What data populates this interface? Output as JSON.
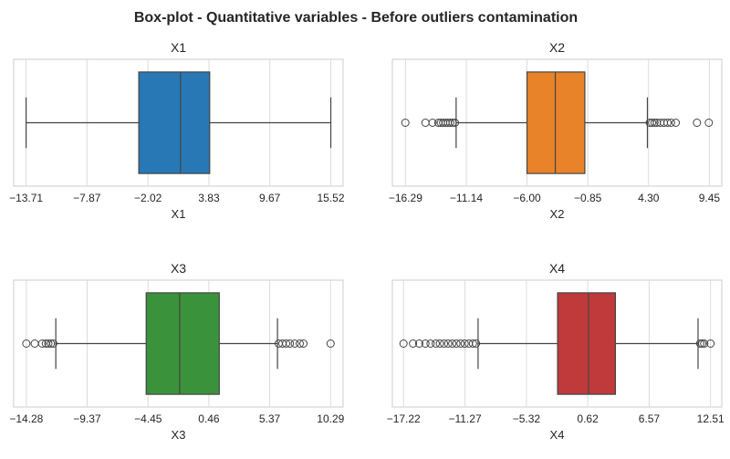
{
  "chart_data": {
    "type": "box",
    "title": "Box-plot - Quantitative variables - Before outliers contamination",
    "panels": [
      {
        "title": "X1",
        "xlabel": "X1",
        "color": "#2878b5",
        "xlim": [
          -14.9,
          16.7
        ],
        "ticks": [
          "-13.71",
          "-7.87",
          "-2.02",
          "3.83",
          "9.67",
          "15.52"
        ],
        "tick_values": [
          -13.71,
          -7.87,
          -2.02,
          3.83,
          9.67,
          15.52
        ],
        "box": {
          "whisker_low": -13.71,
          "q1": -2.9,
          "median": 1.1,
          "q3": 3.9,
          "whisker_high": 15.52
        },
        "outliers": []
      },
      {
        "title": "X2",
        "xlabel": "X2",
        "color": "#e8832a",
        "xlim": [
          -17.4,
          10.5
        ],
        "ticks": [
          "-16.29",
          "-11.14",
          "-6.00",
          "-0.85",
          "4.30",
          "9.45"
        ],
        "tick_values": [
          -16.29,
          -11.14,
          -6.0,
          -0.85,
          4.3,
          9.45
        ],
        "box": {
          "whisker_low": -12.0,
          "q1": -6.0,
          "median": -3.6,
          "q3": -1.1,
          "whisker_high": 4.2
        },
        "outliers": [
          -16.3,
          -14.6,
          -14.0,
          -13.5,
          -13.3,
          -13.1,
          -12.9,
          -12.7,
          -12.5,
          -12.3,
          -12.1,
          4.4,
          4.6,
          4.8,
          5.0,
          5.3,
          5.6,
          5.9,
          6.2,
          6.6,
          8.4,
          9.4
        ]
      },
      {
        "title": "X3",
        "xlabel": "X3",
        "color": "#3a923a",
        "xlim": [
          -15.3,
          11.3
        ],
        "ticks": [
          "-14.28",
          "-9.37",
          "-4.45",
          "0.46",
          "5.37",
          "10.29"
        ],
        "tick_values": [
          -14.28,
          -9.37,
          -4.45,
          0.46,
          5.37,
          10.29
        ],
        "box": {
          "whisker_low": -11.9,
          "q1": -4.6,
          "median": -1.9,
          "q3": 1.3,
          "whisker_high": 6.0
        },
        "outliers": [
          -14.28,
          -13.6,
          -13.0,
          -12.7,
          -12.5,
          -12.3,
          -12.1,
          6.1,
          6.4,
          6.7,
          7.0,
          7.4,
          7.8,
          8.1,
          10.29
        ]
      },
      {
        "title": "X4",
        "xlabel": "X4",
        "color": "#c0393b",
        "xlim": [
          -18.3,
          13.6
        ],
        "ticks": [
          "-17.22",
          "-11.27",
          "-5.32",
          "0.62",
          "6.57",
          "12.51"
        ],
        "tick_values": [
          -17.22,
          -11.27,
          -5.32,
          0.62,
          6.57,
          12.51
        ],
        "box": {
          "whisker_low": -10.0,
          "q1": -2.3,
          "median": 0.7,
          "q3": 3.3,
          "whisker_high": 11.3
        },
        "outliers": [
          -17.22,
          -16.3,
          -15.7,
          -15.1,
          -14.6,
          -14.1,
          -13.7,
          -13.3,
          -12.9,
          -12.5,
          -12.1,
          -11.7,
          -11.3,
          -10.9,
          -10.5,
          -10.2,
          11.5,
          11.7,
          11.9,
          12.51
        ]
      }
    ]
  }
}
